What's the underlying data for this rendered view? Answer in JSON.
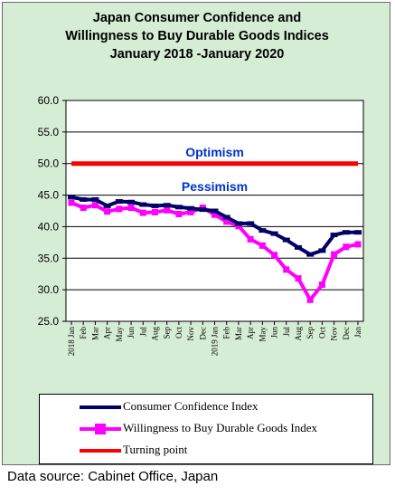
{
  "chart_data": {
    "type": "line",
    "title_lines": [
      "Japan Consumer Confidence and",
      "Willingness to Buy Durable Goods Indices",
      "January 2018 -January  2020"
    ],
    "ylim": [
      25,
      60
    ],
    "y_ticks": [
      "60.0",
      "55.0",
      "50.0",
      "45.0",
      "40.0",
      "35.0",
      "30.0",
      "25.0"
    ],
    "grid": true,
    "x_tick_labels": [
      "2018 Jan",
      "Feb",
      "Mar",
      "Apr",
      "May",
      "Jun",
      "Jul",
      "Aug",
      "Sep",
      "Oct",
      "Nov",
      "Dec",
      "2019 Jan",
      "Feb",
      "Mar",
      "Apr",
      "May",
      "Jun",
      "Jul",
      "Aug",
      "Sep",
      "Oct",
      "Nov",
      "Dec",
      "Jan"
    ],
    "series": [
      {
        "name": "Consumer Confidence Index",
        "color": "#000066",
        "marker": "dash",
        "values": [
          44.7,
          44.3,
          44.3,
          43.3,
          44.0,
          43.9,
          43.5,
          43.3,
          43.4,
          43.1,
          42.9,
          42.7,
          42.5,
          41.5,
          40.5,
          40.5,
          39.4,
          38.9,
          37.9,
          36.7,
          35.6,
          36.2,
          38.7,
          39.1,
          39.1
        ]
      },
      {
        "name": "Willingness to Buy Durable Goods Index",
        "color": "#ff00ff",
        "marker": "square",
        "values": [
          43.8,
          43.0,
          43.4,
          42.4,
          42.8,
          43.0,
          42.2,
          42.3,
          42.6,
          42.0,
          42.3,
          43.0,
          41.9,
          40.8,
          40.1,
          38.0,
          37.0,
          35.5,
          33.2,
          31.8,
          28.4,
          30.8,
          35.6,
          36.8,
          37.2
        ]
      },
      {
        "name": "Turning point",
        "color": "#ff0000",
        "marker": "none",
        "values": [
          50,
          50,
          50,
          50,
          50,
          50,
          50,
          50,
          50,
          50,
          50,
          50,
          50,
          50,
          50,
          50,
          50,
          50,
          50,
          50,
          50,
          50,
          50,
          50,
          50
        ]
      }
    ],
    "annotations": [
      {
        "text": "Optimism",
        "color": "#0033cc",
        "y": 52.0
      },
      {
        "text": "Pessimism",
        "color": "#0033cc",
        "y": 46.5
      }
    ]
  },
  "source_note": "Data source: Cabinet Office, Japan"
}
